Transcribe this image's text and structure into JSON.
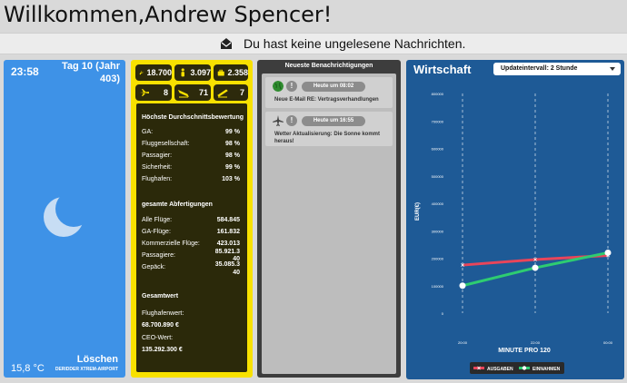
{
  "header": {
    "welcome": "Willkommen,Andrew Spencer!"
  },
  "messages": {
    "text": "Du hast keine ungelesene Nachrichten."
  },
  "weather": {
    "time": "23:58",
    "day": "Tag 10 (Jahr 403)",
    "temperature": "15,8 °C",
    "delete_label": "Löschen",
    "airport": "DERIDDER XTREM-AIRPORT",
    "icon": "moon-icon"
  },
  "stats": {
    "badges": [
      {
        "icon": "runway-plane-icon",
        "value": "18.700"
      },
      {
        "icon": "person-icon",
        "value": "3.097"
      },
      {
        "icon": "suitcase-icon",
        "value": "2.358"
      },
      {
        "icon": "plane-icon",
        "value": "8"
      },
      {
        "icon": "plane-landing-icon",
        "value": "71"
      },
      {
        "icon": "plane-takeoff-icon",
        "value": "7"
      }
    ],
    "rating_heading": "Höchste Durchschnittsbewertung",
    "ratings": [
      {
        "label": "GA:",
        "value": "99 %"
      },
      {
        "label": "Fluggesellschaft:",
        "value": "98 %"
      },
      {
        "label": "Passagier:",
        "value": "98 %"
      },
      {
        "label": "Sicherheit:",
        "value": "99 %"
      },
      {
        "label": "Flughafen:",
        "value": "103 %"
      }
    ],
    "clearance_heading": "gesamte Abfertigungen",
    "clearances": [
      {
        "label": "Alle Flüge:",
        "value": "584.845"
      },
      {
        "label": "GA-Flüge:",
        "value": "161.832"
      },
      {
        "label": "Kommerzielle Flüge:",
        "value": "423.013"
      },
      {
        "label": "Passagiere:",
        "value": "85.921.340"
      },
      {
        "label": "Gepäck:",
        "value": "35.085.340"
      }
    ],
    "total_heading": "Gesamtwert",
    "airport_value_label": "Flughafenwert:",
    "airport_value": "68.700.890 €",
    "ceo_value_label": "CEO-Wert:",
    "ceo_value": "135.292.300 €"
  },
  "notifications": {
    "title": "Neueste Benachrichtigungen",
    "items": [
      {
        "icon": "globe-icon",
        "time": "Heute um 08:02",
        "text": "Neue E-Mail RE: Vertragsverhandlungen",
        "color": "#2e8b2e"
      },
      {
        "icon": "airplane-icon",
        "time": "Heute um 16:55",
        "text": "Wetter Aktualisierung: Die Sonne kommt heraus!",
        "color": "#444444"
      }
    ]
  },
  "economy": {
    "title": "Wirtschaft",
    "update_interval": "Updateintervall: 2 Stunde"
  },
  "chart_data": {
    "type": "line",
    "ylabel": "EUR(€)",
    "xlabel": "MINUTE PRO 120",
    "x": [
      "20:00",
      "22:00",
      "00:00"
    ],
    "yticks": [
      "800000",
      "700000",
      "600000",
      "500000",
      "400000",
      "300000",
      "200000",
      "100000",
      "0"
    ],
    "ylim": [
      0,
      800000
    ],
    "series": [
      {
        "name": "AUSGABEN",
        "color": "#e8455a",
        "values": [
          175000,
          195000,
          210000
        ]
      },
      {
        "name": "EINNAHMEN",
        "color": "#2ecc71",
        "values": [
          100000,
          165000,
          220000
        ]
      }
    ],
    "legend": "bottom"
  }
}
